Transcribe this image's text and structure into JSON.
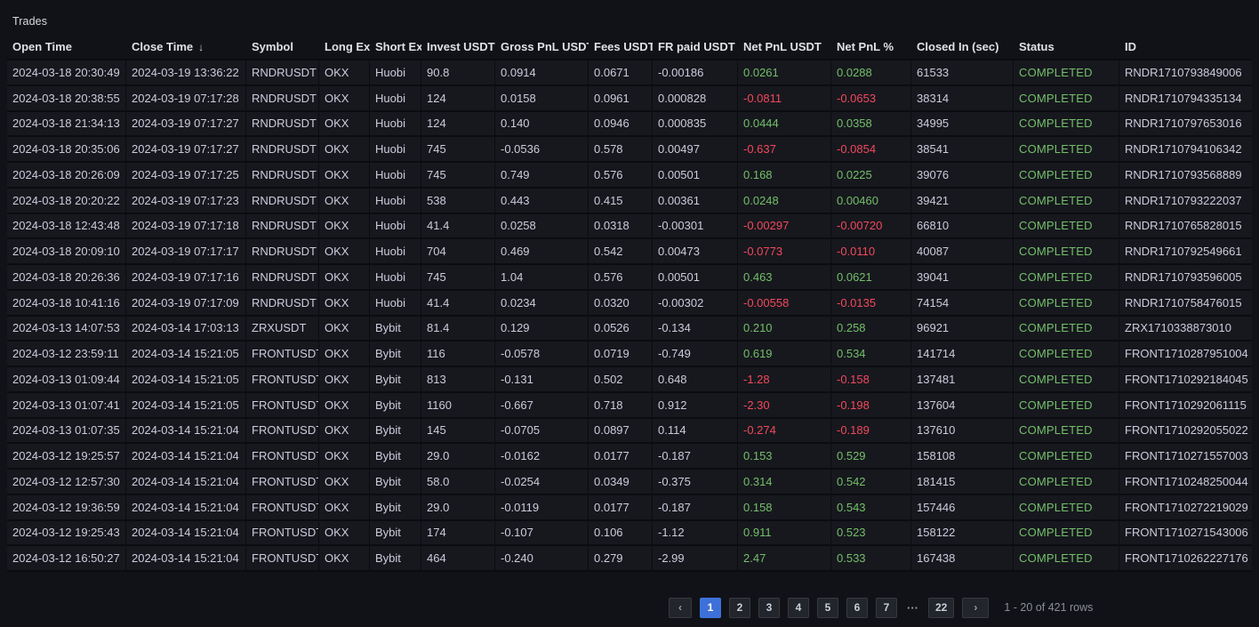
{
  "panel": {
    "title": "Trades"
  },
  "colors": {
    "positive": "#73bf69",
    "negative": "#f2495c",
    "active_page_bg": "#3d71d9",
    "status_completed": "#73bf69"
  },
  "table": {
    "field_order": [
      "open_time",
      "close_time",
      "symbol",
      "long_ex",
      "short_ex",
      "invest_usdt",
      "gross_pnl_usdt",
      "fees_usdt",
      "fr_paid_usdt",
      "net_pnl_usdt",
      "net_pnl_pct",
      "closed_in_sec",
      "status",
      "id"
    ],
    "columns": [
      {
        "label": "Open Time"
      },
      {
        "label": "Close Time",
        "sort_icon": "↓"
      },
      {
        "label": "Symbol"
      },
      {
        "label": "Long Ex"
      },
      {
        "label": "Short Ex"
      },
      {
        "label": "Invest USDT"
      },
      {
        "label": "Gross PnL USDT"
      },
      {
        "label": "Fees USDT"
      },
      {
        "label": "FR paid USDT"
      },
      {
        "label": "Net PnL USDT"
      },
      {
        "label": "Net PnL %"
      },
      {
        "label": "Closed In (sec)"
      },
      {
        "label": "Status"
      },
      {
        "label": "ID"
      }
    ],
    "rows": [
      {
        "open_time": "2024-03-18 20:30:49",
        "close_time": "2024-03-19 13:36:22",
        "symbol": "RNDRUSDT",
        "long_ex": "OKX",
        "short_ex": "Huobi",
        "invest_usdt": "90.8",
        "gross_pnl_usdt": "0.0914",
        "fees_usdt": "0.0671",
        "fr_paid_usdt": "-0.00186",
        "net_pnl_usdt": "0.0261",
        "net_pnl_pct": "0.0288",
        "closed_in_sec": "61533",
        "status": "COMPLETED",
        "id": "RNDR1710793849006"
      },
      {
        "open_time": "2024-03-18 20:38:55",
        "close_time": "2024-03-19 07:17:28",
        "symbol": "RNDRUSDT",
        "long_ex": "OKX",
        "short_ex": "Huobi",
        "invest_usdt": "124",
        "gross_pnl_usdt": "0.0158",
        "fees_usdt": "0.0961",
        "fr_paid_usdt": "0.000828",
        "net_pnl_usdt": "-0.0811",
        "net_pnl_pct": "-0.0653",
        "closed_in_sec": "38314",
        "status": "COMPLETED",
        "id": "RNDR1710794335134"
      },
      {
        "open_time": "2024-03-18 21:34:13",
        "close_time": "2024-03-19 07:17:27",
        "symbol": "RNDRUSDT",
        "long_ex": "OKX",
        "short_ex": "Huobi",
        "invest_usdt": "124",
        "gross_pnl_usdt": "0.140",
        "fees_usdt": "0.0946",
        "fr_paid_usdt": "0.000835",
        "net_pnl_usdt": "0.0444",
        "net_pnl_pct": "0.0358",
        "closed_in_sec": "34995",
        "status": "COMPLETED",
        "id": "RNDR1710797653016"
      },
      {
        "open_time": "2024-03-18 20:35:06",
        "close_time": "2024-03-19 07:17:27",
        "symbol": "RNDRUSDT",
        "long_ex": "OKX",
        "short_ex": "Huobi",
        "invest_usdt": "745",
        "gross_pnl_usdt": "-0.0536",
        "fees_usdt": "0.578",
        "fr_paid_usdt": "0.00497",
        "net_pnl_usdt": "-0.637",
        "net_pnl_pct": "-0.0854",
        "closed_in_sec": "38541",
        "status": "COMPLETED",
        "id": "RNDR1710794106342"
      },
      {
        "open_time": "2024-03-18 20:26:09",
        "close_time": "2024-03-19 07:17:25",
        "symbol": "RNDRUSDT",
        "long_ex": "OKX",
        "short_ex": "Huobi",
        "invest_usdt": "745",
        "gross_pnl_usdt": "0.749",
        "fees_usdt": "0.576",
        "fr_paid_usdt": "0.00501",
        "net_pnl_usdt": "0.168",
        "net_pnl_pct": "0.0225",
        "closed_in_sec": "39076",
        "status": "COMPLETED",
        "id": "RNDR1710793568889"
      },
      {
        "open_time": "2024-03-18 20:20:22",
        "close_time": "2024-03-19 07:17:23",
        "symbol": "RNDRUSDT",
        "long_ex": "OKX",
        "short_ex": "Huobi",
        "invest_usdt": "538",
        "gross_pnl_usdt": "0.443",
        "fees_usdt": "0.415",
        "fr_paid_usdt": "0.00361",
        "net_pnl_usdt": "0.0248",
        "net_pnl_pct": "0.00460",
        "closed_in_sec": "39421",
        "status": "COMPLETED",
        "id": "RNDR1710793222037"
      },
      {
        "open_time": "2024-03-18 12:43:48",
        "close_time": "2024-03-19 07:17:18",
        "symbol": "RNDRUSDT",
        "long_ex": "OKX",
        "short_ex": "Huobi",
        "invest_usdt": "41.4",
        "gross_pnl_usdt": "0.0258",
        "fees_usdt": "0.0318",
        "fr_paid_usdt": "-0.00301",
        "net_pnl_usdt": "-0.00297",
        "net_pnl_pct": "-0.00720",
        "closed_in_sec": "66810",
        "status": "COMPLETED",
        "id": "RNDR1710765828015"
      },
      {
        "open_time": "2024-03-18 20:09:10",
        "close_time": "2024-03-19 07:17:17",
        "symbol": "RNDRUSDT",
        "long_ex": "OKX",
        "short_ex": "Huobi",
        "invest_usdt": "704",
        "gross_pnl_usdt": "0.469",
        "fees_usdt": "0.542",
        "fr_paid_usdt": "0.00473",
        "net_pnl_usdt": "-0.0773",
        "net_pnl_pct": "-0.0110",
        "closed_in_sec": "40087",
        "status": "COMPLETED",
        "id": "RNDR1710792549661"
      },
      {
        "open_time": "2024-03-18 20:26:36",
        "close_time": "2024-03-19 07:17:16",
        "symbol": "RNDRUSDT",
        "long_ex": "OKX",
        "short_ex": "Huobi",
        "invest_usdt": "745",
        "gross_pnl_usdt": "1.04",
        "fees_usdt": "0.576",
        "fr_paid_usdt": "0.00501",
        "net_pnl_usdt": "0.463",
        "net_pnl_pct": "0.0621",
        "closed_in_sec": "39041",
        "status": "COMPLETED",
        "id": "RNDR1710793596005"
      },
      {
        "open_time": "2024-03-18 10:41:16",
        "close_time": "2024-03-19 07:17:09",
        "symbol": "RNDRUSDT",
        "long_ex": "OKX",
        "short_ex": "Huobi",
        "invest_usdt": "41.4",
        "gross_pnl_usdt": "0.0234",
        "fees_usdt": "0.0320",
        "fr_paid_usdt": "-0.00302",
        "net_pnl_usdt": "-0.00558",
        "net_pnl_pct": "-0.0135",
        "closed_in_sec": "74154",
        "status": "COMPLETED",
        "id": "RNDR1710758476015"
      },
      {
        "open_time": "2024-03-13 14:07:53",
        "close_time": "2024-03-14 17:03:13",
        "symbol": "ZRXUSDT",
        "long_ex": "OKX",
        "short_ex": "Bybit",
        "invest_usdt": "81.4",
        "gross_pnl_usdt": "0.129",
        "fees_usdt": "0.0526",
        "fr_paid_usdt": "-0.134",
        "net_pnl_usdt": "0.210",
        "net_pnl_pct": "0.258",
        "closed_in_sec": "96921",
        "status": "COMPLETED",
        "id": "ZRX1710338873010"
      },
      {
        "open_time": "2024-03-12 23:59:11",
        "close_time": "2024-03-14 15:21:05",
        "symbol": "FRONTUSDT",
        "long_ex": "OKX",
        "short_ex": "Bybit",
        "invest_usdt": "116",
        "gross_pnl_usdt": "-0.0578",
        "fees_usdt": "0.0719",
        "fr_paid_usdt": "-0.749",
        "net_pnl_usdt": "0.619",
        "net_pnl_pct": "0.534",
        "closed_in_sec": "141714",
        "status": "COMPLETED",
        "id": "FRONT1710287951004"
      },
      {
        "open_time": "2024-03-13 01:09:44",
        "close_time": "2024-03-14 15:21:05",
        "symbol": "FRONTUSDT",
        "long_ex": "OKX",
        "short_ex": "Bybit",
        "invest_usdt": "813",
        "gross_pnl_usdt": "-0.131",
        "fees_usdt": "0.502",
        "fr_paid_usdt": "0.648",
        "net_pnl_usdt": "-1.28",
        "net_pnl_pct": "-0.158",
        "closed_in_sec": "137481",
        "status": "COMPLETED",
        "id": "FRONT1710292184045"
      },
      {
        "open_time": "2024-03-13 01:07:41",
        "close_time": "2024-03-14 15:21:05",
        "symbol": "FRONTUSDT",
        "long_ex": "OKX",
        "short_ex": "Bybit",
        "invest_usdt": "1160",
        "gross_pnl_usdt": "-0.667",
        "fees_usdt": "0.718",
        "fr_paid_usdt": "0.912",
        "net_pnl_usdt": "-2.30",
        "net_pnl_pct": "-0.198",
        "closed_in_sec": "137604",
        "status": "COMPLETED",
        "id": "FRONT1710292061115"
      },
      {
        "open_time": "2024-03-13 01:07:35",
        "close_time": "2024-03-14 15:21:04",
        "symbol": "FRONTUSDT",
        "long_ex": "OKX",
        "short_ex": "Bybit",
        "invest_usdt": "145",
        "gross_pnl_usdt": "-0.0705",
        "fees_usdt": "0.0897",
        "fr_paid_usdt": "0.114",
        "net_pnl_usdt": "-0.274",
        "net_pnl_pct": "-0.189",
        "closed_in_sec": "137610",
        "status": "COMPLETED",
        "id": "FRONT1710292055022"
      },
      {
        "open_time": "2024-03-12 19:25:57",
        "close_time": "2024-03-14 15:21:04",
        "symbol": "FRONTUSDT",
        "long_ex": "OKX",
        "short_ex": "Bybit",
        "invest_usdt": "29.0",
        "gross_pnl_usdt": "-0.0162",
        "fees_usdt": "0.0177",
        "fr_paid_usdt": "-0.187",
        "net_pnl_usdt": "0.153",
        "net_pnl_pct": "0.529",
        "closed_in_sec": "158108",
        "status": "COMPLETED",
        "id": "FRONT1710271557003"
      },
      {
        "open_time": "2024-03-12 12:57:30",
        "close_time": "2024-03-14 15:21:04",
        "symbol": "FRONTUSDT",
        "long_ex": "OKX",
        "short_ex": "Bybit",
        "invest_usdt": "58.0",
        "gross_pnl_usdt": "-0.0254",
        "fees_usdt": "0.0349",
        "fr_paid_usdt": "-0.375",
        "net_pnl_usdt": "0.314",
        "net_pnl_pct": "0.542",
        "closed_in_sec": "181415",
        "status": "COMPLETED",
        "id": "FRONT1710248250044"
      },
      {
        "open_time": "2024-03-12 19:36:59",
        "close_time": "2024-03-14 15:21:04",
        "symbol": "FRONTUSDT",
        "long_ex": "OKX",
        "short_ex": "Bybit",
        "invest_usdt": "29.0",
        "gross_pnl_usdt": "-0.0119",
        "fees_usdt": "0.0177",
        "fr_paid_usdt": "-0.187",
        "net_pnl_usdt": "0.158",
        "net_pnl_pct": "0.543",
        "closed_in_sec": "157446",
        "status": "COMPLETED",
        "id": "FRONT1710272219029"
      },
      {
        "open_time": "2024-03-12 19:25:43",
        "close_time": "2024-03-14 15:21:04",
        "symbol": "FRONTUSDT",
        "long_ex": "OKX",
        "short_ex": "Bybit",
        "invest_usdt": "174",
        "gross_pnl_usdt": "-0.107",
        "fees_usdt": "0.106",
        "fr_paid_usdt": "-1.12",
        "net_pnl_usdt": "0.911",
        "net_pnl_pct": "0.523",
        "closed_in_sec": "158122",
        "status": "COMPLETED",
        "id": "FRONT1710271543006"
      },
      {
        "open_time": "2024-03-12 16:50:27",
        "close_time": "2024-03-14 15:21:04",
        "symbol": "FRONTUSDT",
        "long_ex": "OKX",
        "short_ex": "Bybit",
        "invest_usdt": "464",
        "gross_pnl_usdt": "-0.240",
        "fees_usdt": "0.279",
        "fr_paid_usdt": "-2.99",
        "net_pnl_usdt": "2.47",
        "net_pnl_pct": "0.533",
        "closed_in_sec": "167438",
        "status": "COMPLETED",
        "id": "FRONT1710262227176"
      }
    ]
  },
  "pagination": {
    "prev_icon": "‹",
    "next_icon": "›",
    "pages": [
      "1",
      "2",
      "3",
      "4",
      "5",
      "6",
      "7",
      "···",
      "22"
    ],
    "active_page": "1",
    "summary": "1 - 20 of 421 rows"
  }
}
